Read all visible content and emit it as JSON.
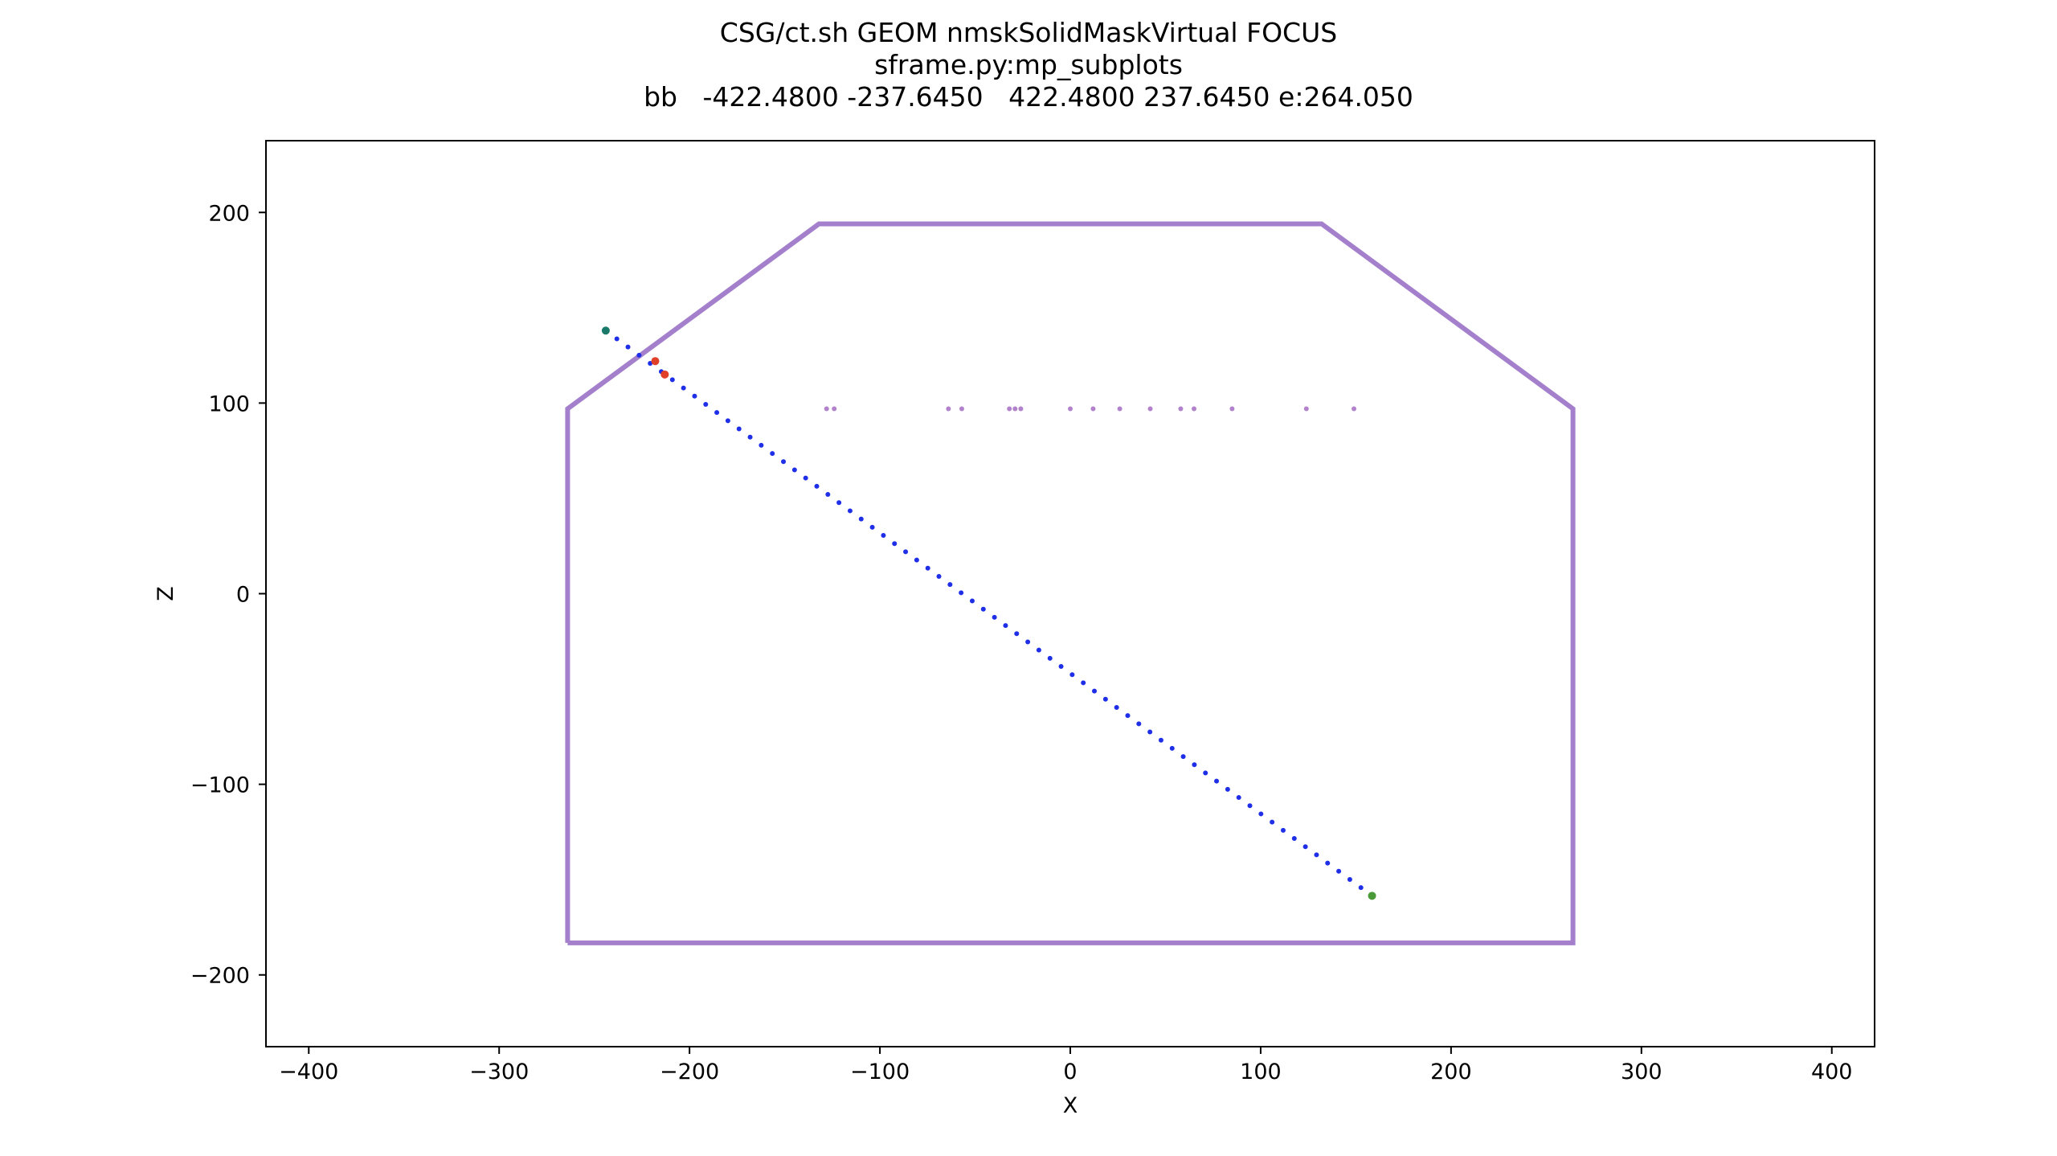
{
  "chart_data": {
    "type": "scatter",
    "title_lines": [
      "CSG/ct.sh GEOM nmskSolidMaskVirtual FOCUS",
      "sframe.py:mp_subplots",
      "bb   -422.4800 -237.6450   422.4800 237.6450 e:264.050"
    ],
    "xlabel": "X",
    "ylabel": "Z",
    "xlim": [
      -422.48,
      422.48
    ],
    "ylim": [
      -237.645,
      237.645
    ],
    "xticks": [
      {
        "value": -400,
        "label": "−400"
      },
      {
        "value": -300,
        "label": "−300"
      },
      {
        "value": -200,
        "label": "−200"
      },
      {
        "value": -100,
        "label": "−100"
      },
      {
        "value": 0,
        "label": "0"
      },
      {
        "value": 100,
        "label": "100"
      },
      {
        "value": 200,
        "label": "200"
      },
      {
        "value": 300,
        "label": "300"
      },
      {
        "value": 400,
        "label": "400"
      }
    ],
    "yticks": [
      {
        "value": -200,
        "label": "−200"
      },
      {
        "value": -100,
        "label": "−100"
      },
      {
        "value": 0,
        "label": "0"
      },
      {
        "value": 100,
        "label": "100"
      },
      {
        "value": 200,
        "label": "200"
      }
    ],
    "grid": false,
    "outline": {
      "color": "#a47fcc",
      "points": [
        [
          -264.05,
          -183.2
        ],
        [
          -264.05,
          97.0
        ],
        [
          -132.0,
          194.0
        ],
        [
          132.0,
          194.0
        ],
        [
          264.05,
          97.0
        ],
        [
          264.05,
          -183.2
        ],
        [
          -264.05,
          -183.2
        ]
      ]
    },
    "ray": {
      "color": "#1f2fe8",
      "start": [
        -244.0,
        138.0
      ],
      "end": [
        158.5,
        -158.5
      ],
      "n_points": 70
    },
    "intersect_points": {
      "color": "#b282cc",
      "x": [
        -128,
        -124,
        -64,
        -57,
        -32,
        -29,
        -26,
        0,
        12,
        26,
        42,
        58,
        65,
        85,
        124,
        149
      ],
      "y": [
        97,
        97,
        97,
        97,
        97,
        97,
        97,
        97,
        97,
        97,
        97,
        97,
        97,
        97,
        97,
        97
      ]
    },
    "markers": [
      {
        "x": -244,
        "y": 138,
        "color": "#1a7a6a"
      },
      {
        "x": -218,
        "y": 122,
        "color": "#e0402a"
      },
      {
        "x": -213,
        "y": 115,
        "color": "#e0402a"
      },
      {
        "x": 158.5,
        "y": -158.5,
        "color": "#4a9a3a"
      }
    ]
  }
}
